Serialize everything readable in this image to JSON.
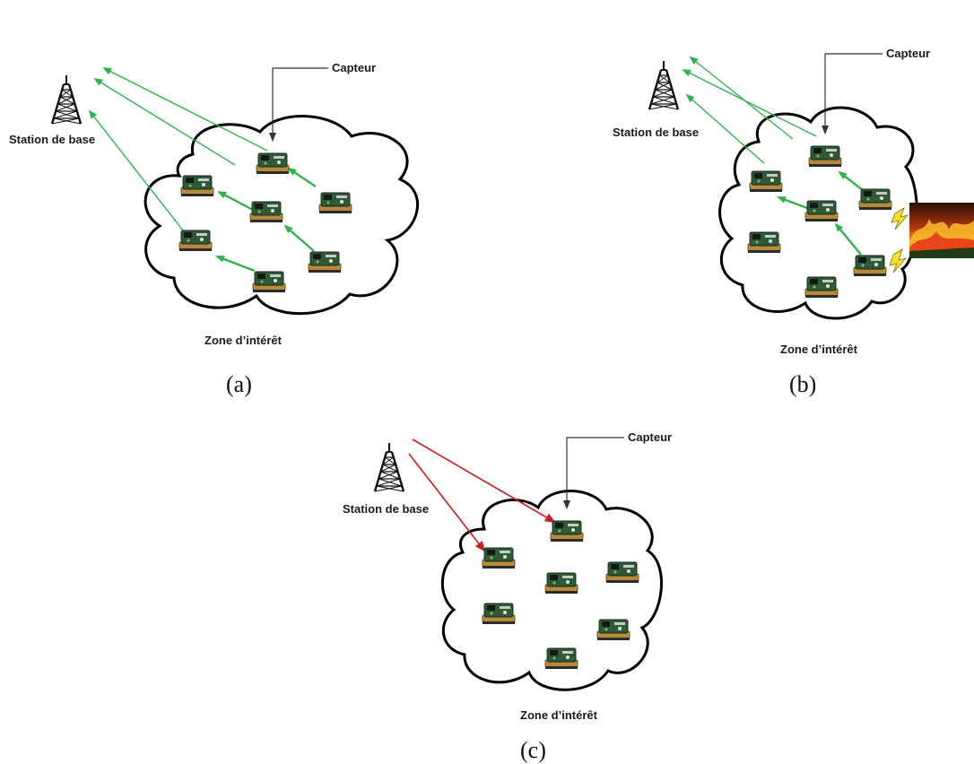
{
  "panels": [
    {
      "id": "a",
      "station_label": "Station de base",
      "sensor_label": "Capteur",
      "zone_label": "Zone d’intérêt",
      "sub_label": "(a)",
      "data_flow": "sensors-to-station",
      "flow_color": "#2fb34c"
    },
    {
      "id": "b",
      "station_label": "Station de base",
      "sensor_label": "Capteur",
      "zone_label": "Zone d’intérêt",
      "sub_label": "(b)",
      "data_flow": "event-triggered-to-station",
      "flow_color": "#2fb34c",
      "event": "fire-image"
    },
    {
      "id": "c",
      "station_label": "Station de base",
      "sensor_label": "Capteur",
      "zone_label": "Zone d’intérêt",
      "sub_label": "(c)",
      "data_flow": "station-query-to-sensors",
      "flow_color": "#cc1f1f"
    }
  ],
  "colors": {
    "cloud_stroke": "#000000",
    "sensor_board": "#2f5a36",
    "sensor_base": "#b8893d",
    "tower": "#111111",
    "label_leader": "#333333"
  }
}
